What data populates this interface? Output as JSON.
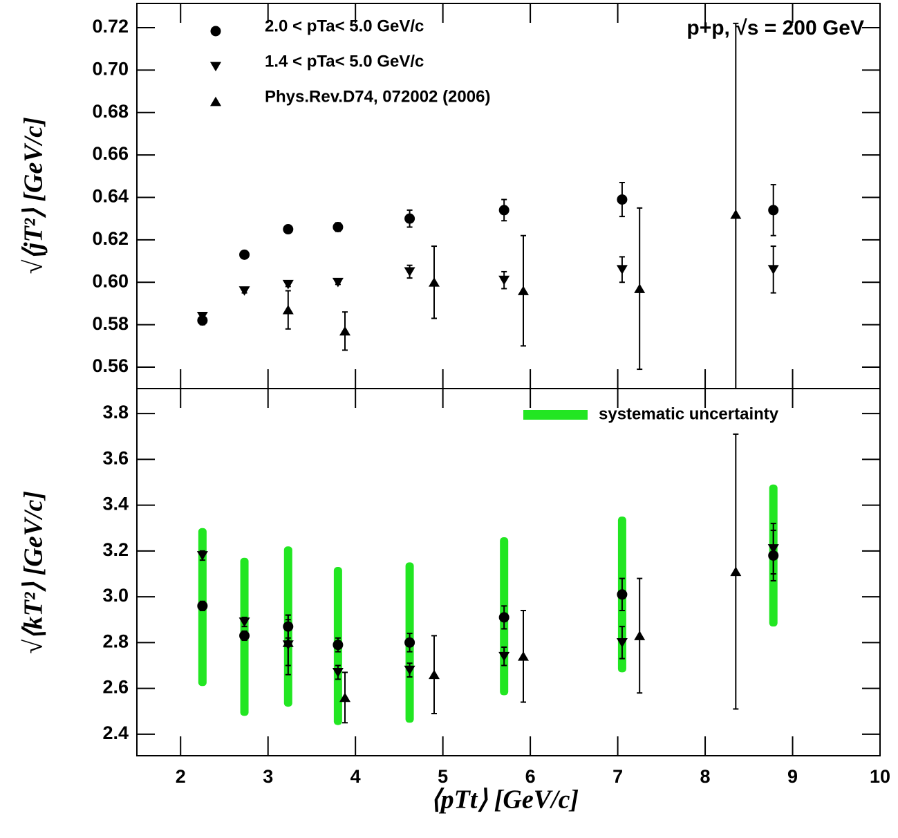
{
  "chart_data": [
    {
      "type": "scatter",
      "y_label": "√⟨jT²⟩ [GeV/c]",
      "annotation": "p+p, √s = 200 GeV",
      "xlim": [
        1.5,
        10
      ],
      "ylim": [
        0.5499,
        0.7314
      ],
      "yticks": [
        0.56,
        0.58,
        {
          "value": 0.6,
          "label": "0.60"
        },
        0.62,
        0.64,
        0.66,
        0.68,
        {
          "value": 0.7,
          "label": "0.70"
        },
        0.72
      ],
      "series": [
        {
          "name": "2.0 < pTa< 5.0 GeV/c",
          "marker": "circle",
          "color": "#000000",
          "x": [
            2.25,
            2.73,
            3.23,
            3.8,
            4.62,
            5.7,
            7.05,
            8.78
          ],
          "values": [
            0.582,
            0.613,
            0.625,
            0.626,
            0.63,
            0.634,
            0.639,
            0.634
          ],
          "errors": [
            0.002,
            0.001,
            0.001,
            0.002,
            0.004,
            0.005,
            0.008,
            0.012
          ]
        },
        {
          "name": "1.4 < pTa< 5.0 GeV/c",
          "marker": "triangle-down",
          "color": "#000000",
          "x": [
            2.25,
            2.73,
            3.23,
            3.8,
            4.62,
            5.7,
            7.05,
            8.78
          ],
          "values": [
            0.584,
            0.596,
            0.599,
            0.6,
            0.605,
            0.601,
            0.606,
            0.606
          ],
          "errors": [
            0.001,
            0.001,
            0.001,
            0.001,
            0.003,
            0.004,
            0.006,
            0.011
          ]
        },
        {
          "name": "Phys.Rev.D74, 072002 (2006)",
          "marker": "triangle-up",
          "color": "#000000",
          "x": [
            3.23,
            3.88,
            4.9,
            5.92,
            7.25,
            8.35
          ],
          "values": [
            0.587,
            0.577,
            0.6,
            0.596,
            0.597,
            0.632
          ],
          "errors": [
            0.009,
            0.009,
            0.017,
            0.026,
            0.038,
            0.09
          ]
        }
      ]
    },
    {
      "type": "scatter",
      "y_label": "√⟨kT²⟩ [GeV/c]",
      "x_label": "⟨pTt⟩ [GeV/c]",
      "xlim": [
        1.5,
        10
      ],
      "ylim": [
        2.306,
        3.909
      ],
      "xticks": [
        2,
        3,
        4,
        5,
        6,
        7,
        8,
        9,
        10
      ],
      "yticks": [
        2.4,
        2.6,
        2.8,
        {
          "value": 3,
          "label": "3.0"
        },
        3.2,
        3.4,
        3.6,
        3.8
      ],
      "bands": {
        "name": "systematic uncertainty",
        "color": "#22e622",
        "x": [
          2.25,
          2.73,
          3.23,
          3.8,
          4.62,
          5.7,
          7.05,
          8.78
        ],
        "lower": [
          2.61,
          2.48,
          2.52,
          2.44,
          2.45,
          2.57,
          2.67,
          2.87
        ],
        "upper": [
          3.3,
          3.17,
          3.22,
          3.13,
          3.15,
          3.26,
          3.35,
          3.49
        ]
      },
      "series": [
        {
          "marker": "circle",
          "color": "#000000",
          "x": [
            2.25,
            2.73,
            3.23,
            3.8,
            4.62,
            5.7,
            7.05,
            8.78
          ],
          "values": [
            2.96,
            2.83,
            2.87,
            2.79,
            2.8,
            2.91,
            3.01,
            3.18
          ],
          "errors": [
            0.02,
            0.02,
            0.05,
            0.03,
            0.04,
            0.05,
            0.07,
            0.11
          ]
        },
        {
          "marker": "triangle-down",
          "color": "#000000",
          "x": [
            2.25,
            2.73,
            3.23,
            3.8,
            4.62,
            5.7,
            7.05,
            8.78
          ],
          "values": [
            3.18,
            2.89,
            2.79,
            2.67,
            2.68,
            2.74,
            2.8,
            3.21
          ],
          "errors": [
            0.02,
            0.02,
            0.13,
            0.03,
            0.03,
            0.04,
            0.07,
            0.11
          ]
        },
        {
          "marker": "triangle-up",
          "color": "#000000",
          "x": [
            3.23,
            3.88,
            4.9,
            5.92,
            7.25,
            8.35
          ],
          "values": [
            2.8,
            2.56,
            2.66,
            2.74,
            2.83,
            3.11
          ],
          "errors": [
            0.1,
            0.11,
            0.17,
            0.2,
            0.25,
            0.6
          ]
        }
      ]
    }
  ]
}
